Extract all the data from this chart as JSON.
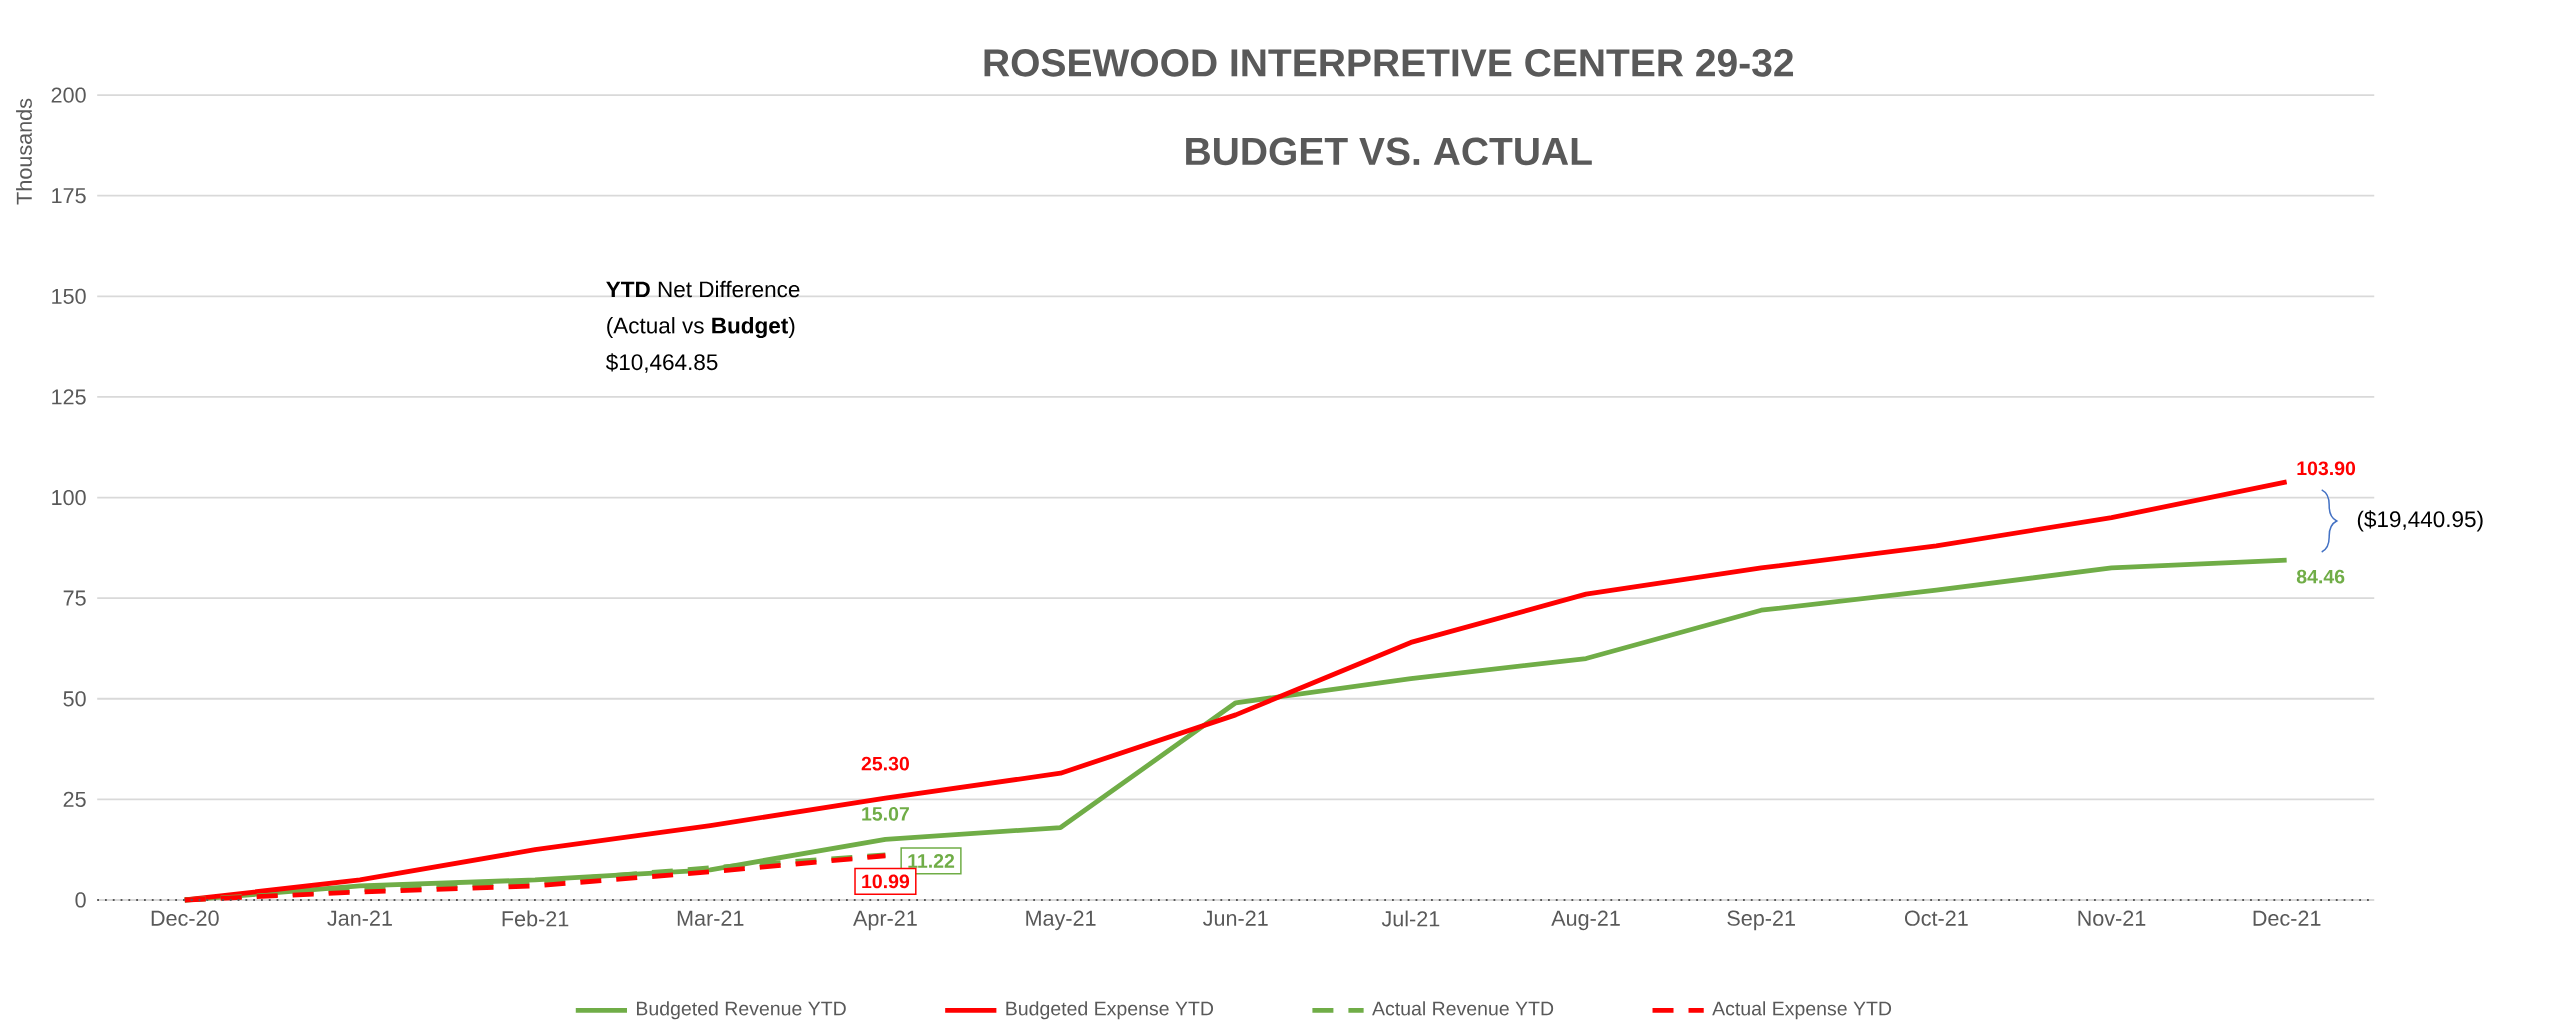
{
  "chart_data": {
    "type": "line",
    "title": "ROSEWOOD INTERPRETIVE CENTER 29-32",
    "subtitle": "BUDGET VS. ACTUAL",
    "ylabel": "Thousands",
    "categories": [
      "Dec-20",
      "Jan-21",
      "Feb-21",
      "Mar-21",
      "Apr-21",
      "May-21",
      "Jun-21",
      "Jul-21",
      "Aug-21",
      "Sep-21",
      "Oct-21",
      "Nov-21",
      "Dec-21"
    ],
    "series": [
      {
        "name": "Budgeted Revenue YTD",
        "color": "#70ad47",
        "line_style": "solid",
        "values": [
          0,
          3.5,
          5,
          7.5,
          15.07,
          18,
          49,
          55,
          60,
          72,
          77,
          82.5,
          84.46
        ],
        "value_labels": [
          null,
          null,
          null,
          null,
          "15.07",
          null,
          null,
          null,
          null,
          null,
          null,
          null,
          "84.46"
        ]
      },
      {
        "name": "Budgeted Expense YTD",
        "color": "#ff0000",
        "line_style": "solid",
        "values": [
          0,
          5,
          12.5,
          18.5,
          25.3,
          31.5,
          46,
          64,
          76,
          82.5,
          88,
          95,
          103.9
        ],
        "value_labels": [
          null,
          null,
          null,
          null,
          "25.30",
          null,
          null,
          null,
          null,
          null,
          null,
          null,
          "103.90"
        ]
      },
      {
        "name": "Actual Revenue YTD",
        "color": "#70ad47",
        "line_style": "dashed",
        "values": [
          0,
          2.5,
          4.5,
          8,
          11.22,
          null,
          null,
          null,
          null,
          null,
          null,
          null,
          null
        ],
        "value_labels": [
          null,
          null,
          null,
          null,
          "11.22",
          null,
          null,
          null,
          null,
          null,
          null,
          null,
          null
        ]
      },
      {
        "name": "Actual Expense YTD",
        "color": "#ff0000",
        "line_style": "dashed",
        "values": [
          0,
          2,
          3.5,
          7,
          10.99,
          null,
          null,
          null,
          null,
          null,
          null,
          null,
          null
        ],
        "value_labels": [
          null,
          null,
          null,
          null,
          "10.99",
          null,
          null,
          null,
          null,
          null,
          null,
          null,
          null
        ]
      }
    ],
    "ylim": [
      0,
      200
    ],
    "yticks": [
      0,
      25,
      50,
      75,
      100,
      125,
      150,
      175,
      200
    ],
    "grid": "y",
    "legend": "bottom",
    "marker": "none",
    "annotations": [
      "**YTD** Net Difference",
      "(Actual vs **Budget**)",
      "$10,464.85",
      "($19,440.95)"
    ]
  }
}
